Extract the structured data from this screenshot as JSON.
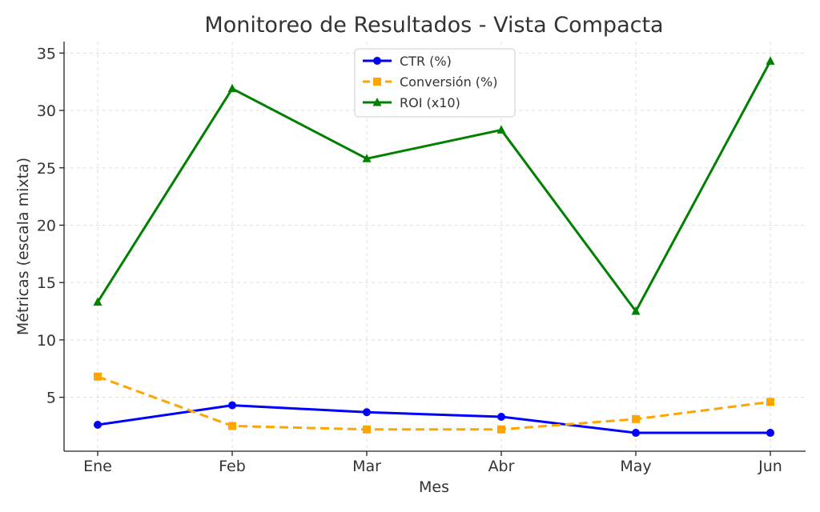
{
  "chart_data": {
    "type": "line",
    "title": "Monitoreo de Resultados - Vista Compacta",
    "xlabel": "Mes",
    "ylabel": "Métricas (escala mixta)",
    "categories": [
      "Ene",
      "Feb",
      "Mar",
      "Abr",
      "May",
      "Jun"
    ],
    "ylim": [
      0.3,
      36
    ],
    "yticks": [
      5,
      10,
      15,
      20,
      25,
      30,
      35
    ],
    "grid": true,
    "legend_position": "top-center",
    "series": [
      {
        "name": "CTR (%)",
        "color": "#0000ff",
        "marker": "circle",
        "dash": "solid",
        "values": [
          2.6,
          4.3,
          3.7,
          3.3,
          1.9,
          1.9
        ]
      },
      {
        "name": "Conversión (%)",
        "color": "#ffa500",
        "marker": "square",
        "dash": "dashed",
        "values": [
          6.8,
          2.5,
          2.2,
          2.2,
          3.1,
          4.6
        ]
      },
      {
        "name": "ROI (x10)",
        "color": "#008000",
        "marker": "triangle",
        "dash": "solid",
        "values": [
          13.3,
          31.9,
          25.8,
          28.3,
          12.5,
          34.3
        ]
      }
    ]
  }
}
